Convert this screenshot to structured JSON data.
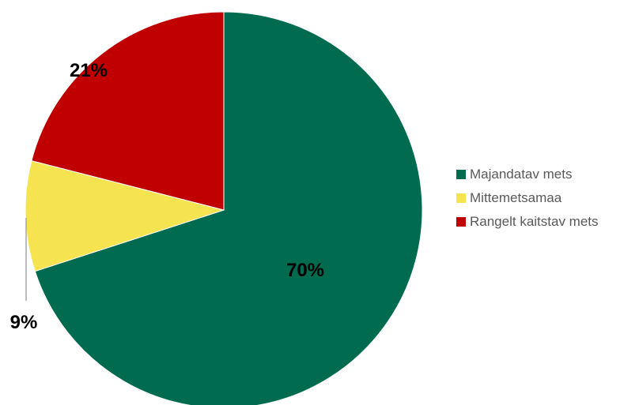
{
  "chart_data": {
    "type": "pie",
    "title": "",
    "start_angle_deg": 0,
    "direction": "clockwise",
    "legend_position": "right",
    "slices": [
      {
        "label": "Majandatav mets",
        "value": 70,
        "display": "70%",
        "color": "#006b4f"
      },
      {
        "label": "Mittemetsamaa",
        "value": 9,
        "display": "9%",
        "color": "#f5e44f"
      },
      {
        "label": "Rangelt kaitstav mets",
        "value": 21,
        "display": "21%",
        "color": "#c00000"
      }
    ]
  }
}
